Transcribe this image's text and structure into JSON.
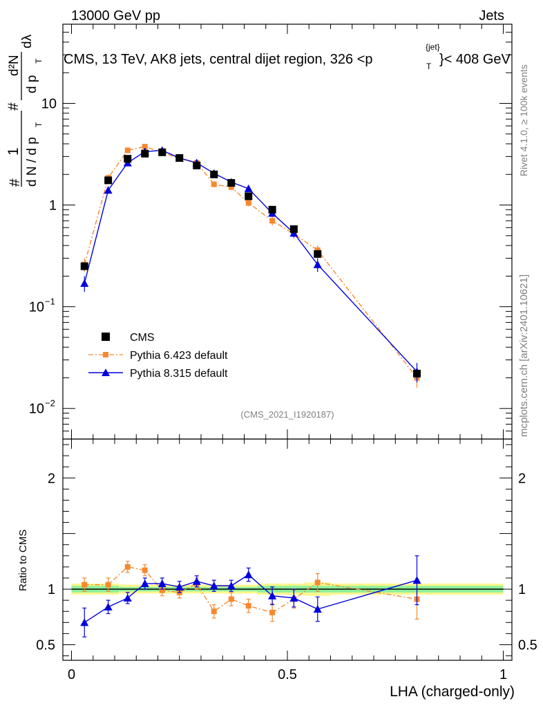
{
  "header": {
    "left": "13000 GeV pp",
    "right": "Jets"
  },
  "side_labels": {
    "rivet": "Rivet 4.1.0, ≥ 100k events",
    "site": "mcplots.cern.ch [arXiv:2401.10621]"
  },
  "chart_data": {
    "type": "scatter",
    "title": "CMS, 13 TeV, AK8 jets, central dijet region, 326 <p",
    "title_sup": "{jet}",
    "title_sub": "T",
    "title_tail": "}< 408 GeV",
    "analysis_id": "(CMS_2021_I1920187)",
    "xlabel": "LHA (charged-only)",
    "ylabel": "# 1/(dN / dp_T) # d²N/(dp_T dλ)",
    "ylabel_parts": {
      "hash": "#",
      "one": "1",
      "den": "d N / d p",
      "den_sub": "T",
      "num": "d²N",
      "num_den": "d p",
      "num_den_sub": "T",
      "dl": "dλ"
    },
    "ratio_ylabel": "Ratio to CMS",
    "xlim": [
      -0.02,
      1.02
    ],
    "ylim": [
      0.005,
      60
    ],
    "ratio_ylim": [
      0.36,
      2.35
    ],
    "xticks": [
      {
        "v": 0,
        "label": "0"
      },
      {
        "v": 0.5,
        "label": "0.5"
      },
      {
        "v": 1,
        "label": "1"
      }
    ],
    "yticks_main": [
      {
        "v": 0.01,
        "base": "10",
        "exp": "−2"
      },
      {
        "v": 0.1,
        "base": "10",
        "exp": "−1"
      },
      {
        "v": 1,
        "base": "1",
        "exp": ""
      },
      {
        "v": 10,
        "base": "10",
        "exp": ""
      }
    ],
    "yticks_ratio": [
      {
        "v": 0.5,
        "label": "0.5"
      },
      {
        "v": 1,
        "label": "1"
      },
      {
        "v": 2,
        "label": "2"
      }
    ],
    "x": [
      0.03,
      0.085,
      0.13,
      0.17,
      0.21,
      0.25,
      0.29,
      0.33,
      0.37,
      0.41,
      0.465,
      0.515,
      0.57,
      0.8
    ],
    "bin_edges": [
      0.0,
      0.06,
      0.11,
      0.15,
      0.19,
      0.23,
      0.27,
      0.31,
      0.35,
      0.39,
      0.43,
      0.49,
      0.54,
      0.6,
      1.0
    ],
    "series": [
      {
        "name": "CMS",
        "color": "#000000",
        "marker": "square",
        "values": [
          0.25,
          1.75,
          2.85,
          3.2,
          3.3,
          2.9,
          2.45,
          2.0,
          1.65,
          1.22,
          0.9,
          0.58,
          0.33,
          0.022
        ]
      },
      {
        "name": "Pythia 6.423 default",
        "color": "#f6892f",
        "marker": "square-small",
        "line": "dash-dot",
        "values": [
          0.26,
          1.85,
          3.45,
          3.75,
          3.3,
          2.85,
          2.6,
          1.6,
          1.5,
          1.05,
          0.7,
          0.52,
          0.36,
          0.02
        ],
        "errors": [
          0.04,
          0.15,
          0.2,
          0.2,
          0.15,
          0.12,
          0.12,
          0.1,
          0.1,
          0.08,
          0.07,
          0.05,
          0.04,
          0.004
        ],
        "ratio": [
          1.04,
          1.04,
          1.2,
          1.17,
          0.99,
          0.97,
          1.05,
          0.8,
          0.91,
          0.85,
          0.79,
          0.91,
          1.06,
          0.91
        ],
        "ratio_err": [
          0.06,
          0.06,
          0.05,
          0.05,
          0.05,
          0.05,
          0.05,
          0.06,
          0.06,
          0.06,
          0.08,
          0.08,
          0.08,
          0.18
        ]
      },
      {
        "name": "Pythia 8.315 default",
        "color": "#0000dd",
        "marker": "triangle",
        "line": "solid",
        "values": [
          0.17,
          1.4,
          2.6,
          3.35,
          3.45,
          2.9,
          2.6,
          2.05,
          1.68,
          1.45,
          0.83,
          0.53,
          0.26,
          0.023
        ],
        "errors": [
          0.03,
          0.1,
          0.12,
          0.12,
          0.12,
          0.1,
          0.1,
          0.1,
          0.1,
          0.1,
          0.06,
          0.05,
          0.04,
          0.005
        ],
        "ratio": [
          0.7,
          0.84,
          0.92,
          1.05,
          1.05,
          1.02,
          1.07,
          1.03,
          1.03,
          1.13,
          0.94,
          0.92,
          0.82,
          1.08
        ],
        "ratio_err": [
          0.13,
          0.06,
          0.05,
          0.05,
          0.05,
          0.05,
          0.05,
          0.05,
          0.05,
          0.06,
          0.08,
          0.08,
          0.11,
          0.22
        ]
      }
    ],
    "cms_band_rel_error": [
      0.05,
      0.05,
      0.04,
      0.04,
      0.04,
      0.04,
      0.04,
      0.04,
      0.04,
      0.04,
      0.05,
      0.05,
      0.06,
      0.05
    ],
    "cms_band_rel_error_syst": [
      0.03,
      0.03,
      0.02,
      0.02,
      0.02,
      0.02,
      0.02,
      0.02,
      0.02,
      0.02,
      0.03,
      0.03,
      0.03,
      0.03
    ],
    "legend_position": "lower-left"
  }
}
